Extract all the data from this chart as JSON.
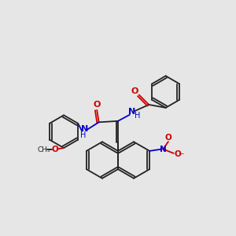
{
  "bg_color": "#e6e6e6",
  "bond_color": "#222222",
  "nitrogen_color": "#0000cc",
  "oxygen_color": "#cc0000",
  "figsize": [
    3.0,
    3.0
  ],
  "dpi": 100,
  "xlim": [
    0,
    10
  ],
  "ylim": [
    0,
    10
  ]
}
